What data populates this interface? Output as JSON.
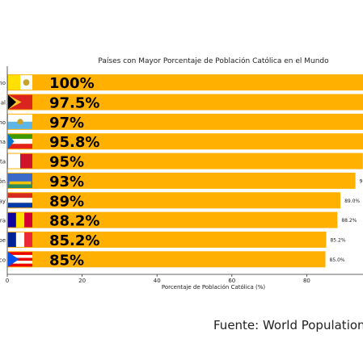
{
  "chart_data": {
    "type": "bar",
    "orientation": "horizontal",
    "title": "Países con Mayor Porcentaje de Población Católica en el Mundo",
    "xlabel": "Porcentaje de Población Católica (%)",
    "ylabel": "",
    "xlim": [
      0,
      95
    ],
    "xticks": [
      0,
      20,
      40,
      60,
      80
    ],
    "grid": false,
    "bar_color": "#FFB000",
    "categories": [
      "Vaticano",
      "Timor Oriental",
      "San Marino",
      "Guinea Ecuatorial",
      "Malta",
      "San Pedro y Miquelón",
      "Paraguay",
      "Andorra",
      "Wallis y Futuna",
      "Puerto Rico"
    ],
    "category_labels_visible": [
      "no",
      "al",
      "no",
      "na",
      "ta",
      "ón",
      "ay",
      "ra",
      "pe",
      "co"
    ],
    "values": [
      100,
      97.5,
      97,
      95.8,
      95,
      93,
      89,
      88.2,
      85.2,
      85
    ],
    "big_labels": [
      "100%",
      "97.5%",
      "97%",
      "95.8%",
      "95%",
      "93%",
      "89%",
      "88.2%",
      "85.2%",
      "85%"
    ],
    "small_labels": [
      "",
      "",
      "",
      "",
      "",
      "9",
      "89.0%",
      "88.2%",
      "85.2%",
      "85.0%"
    ],
    "flags": [
      "vatican",
      "timor-leste",
      "san-marino",
      "equatorial-guinea",
      "malta",
      "saint-pierre-miquelon",
      "paraguay",
      "andorra",
      "wallis-futuna",
      "puerto-rico"
    ]
  },
  "source": "Fuente: World Population"
}
